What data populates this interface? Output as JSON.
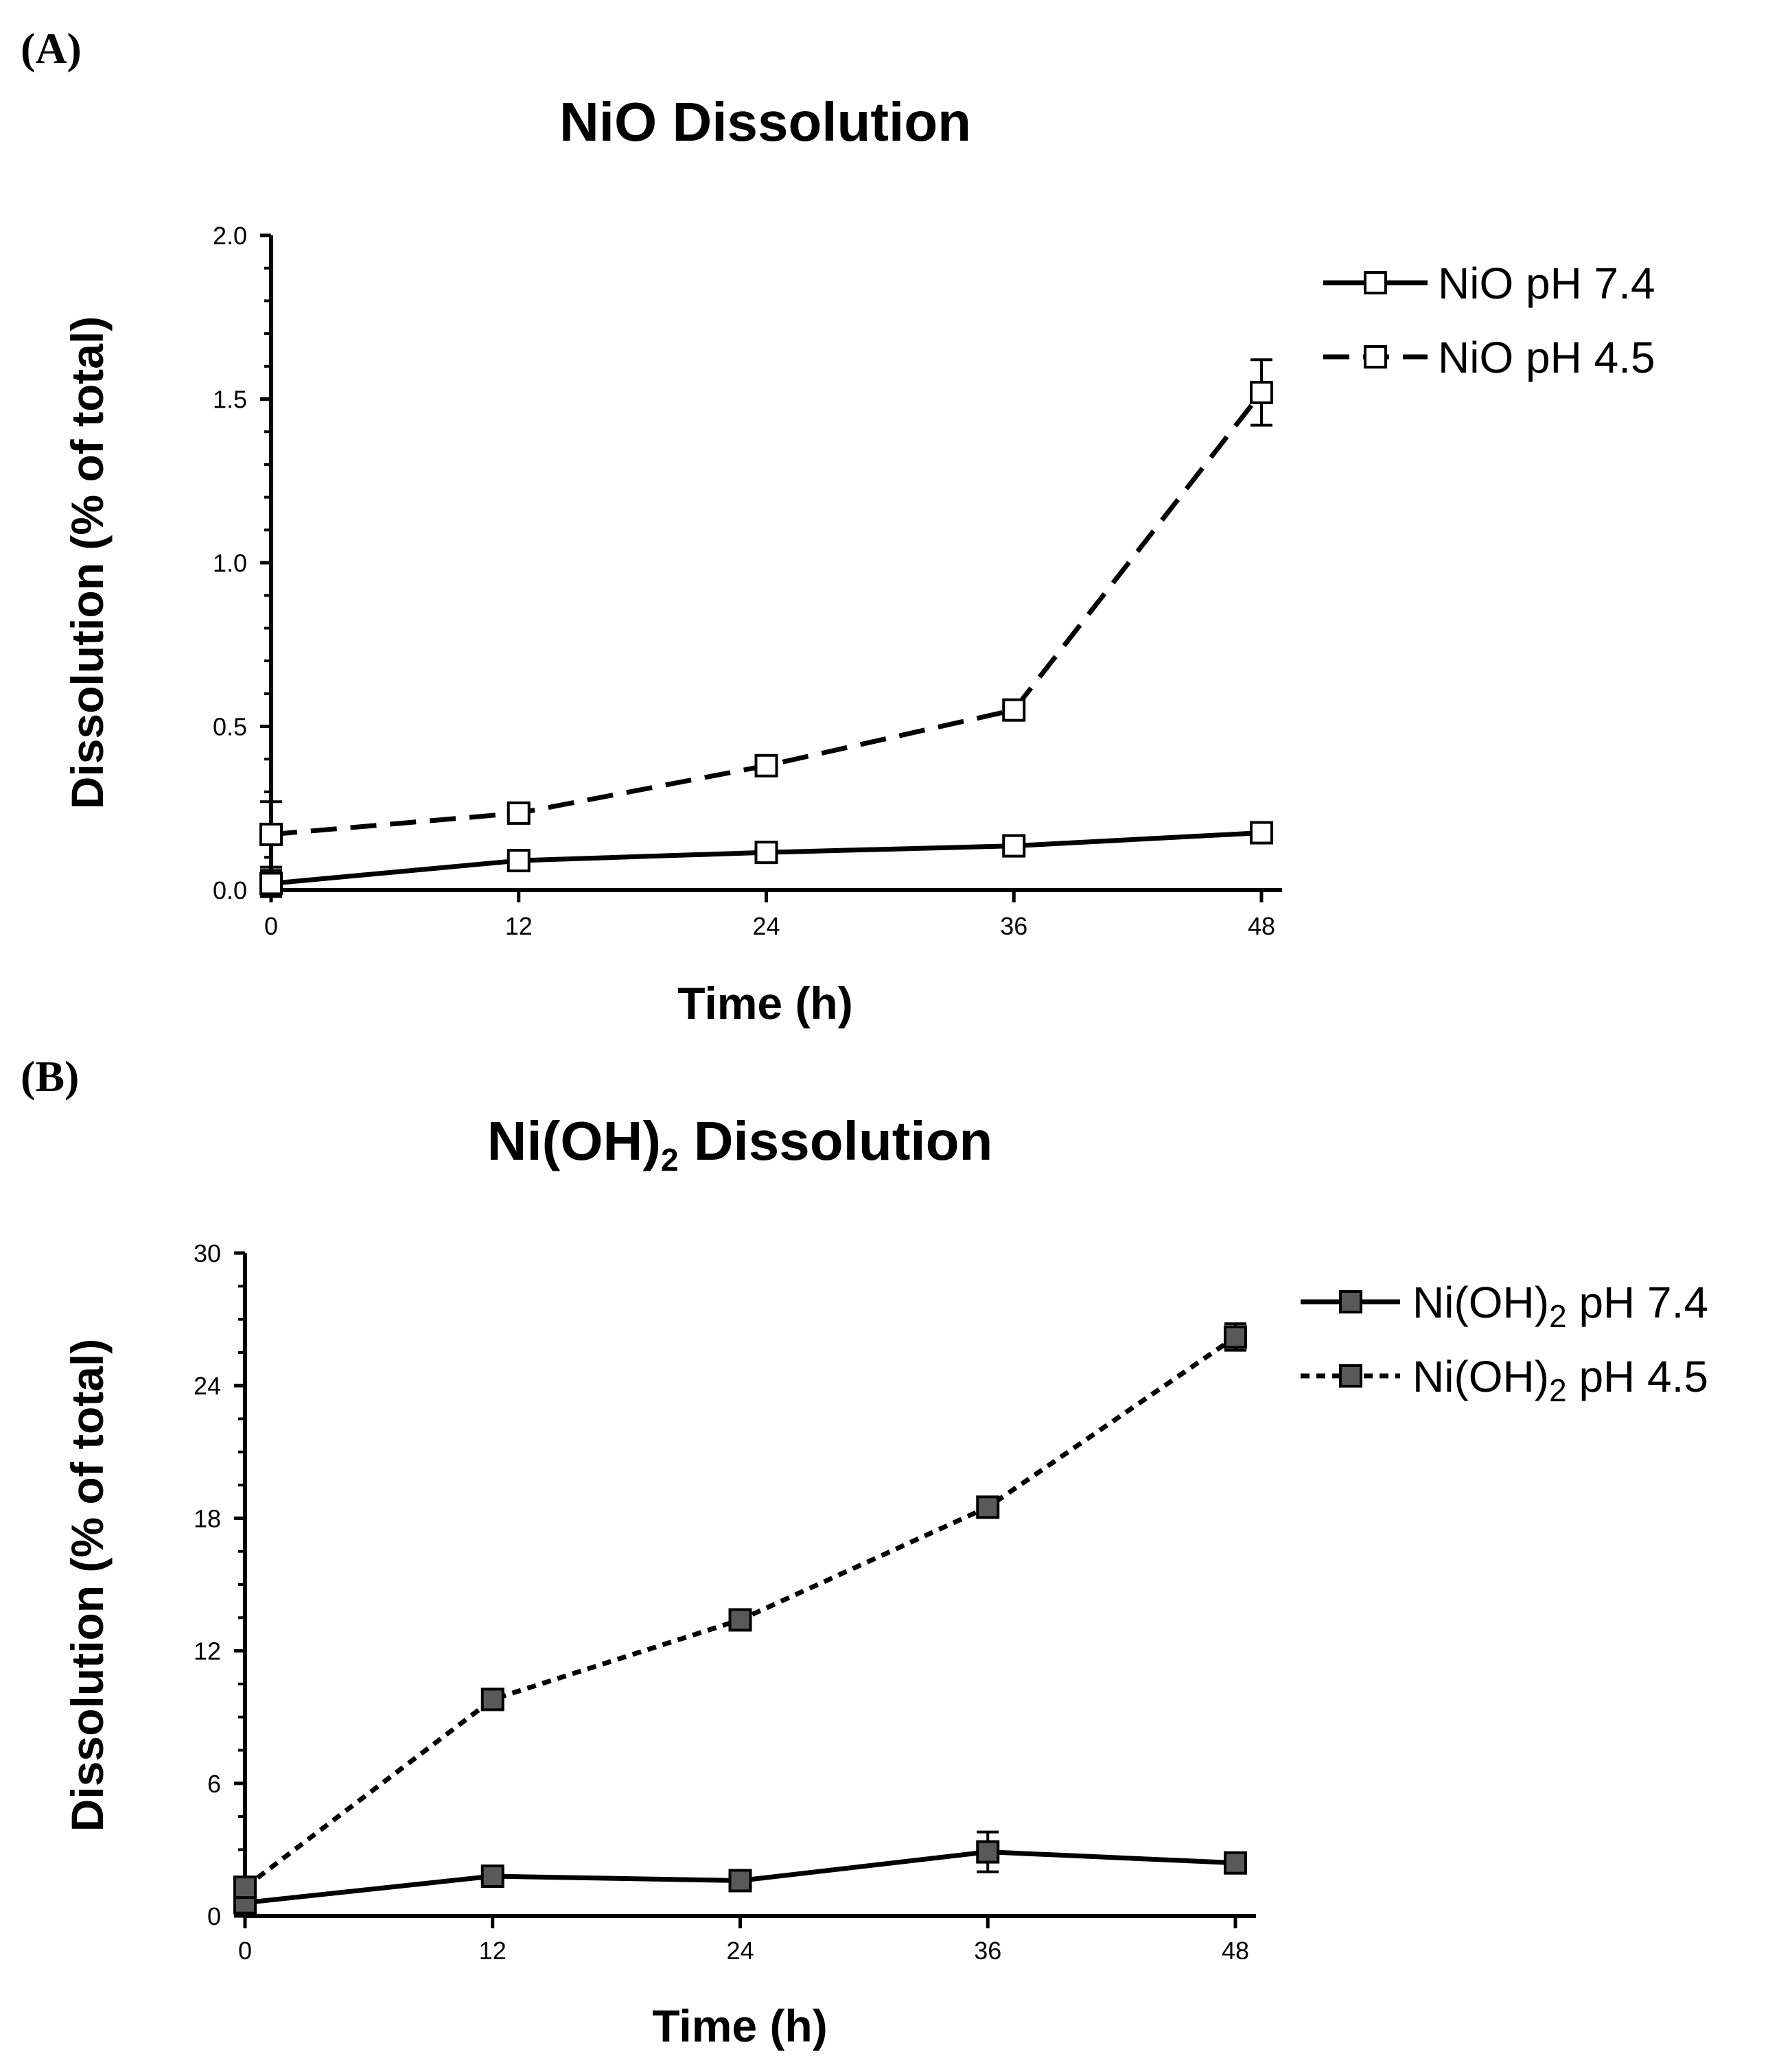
{
  "chart_data": [
    {
      "type": "line",
      "panel_label": "(A)",
      "title": "NiO Dissolution",
      "title_sub": "",
      "title_rest": "",
      "xlabel": "Time (h)",
      "ylabel": "Dissolution (% of total)",
      "xlim": [
        0,
        48
      ],
      "ylim": [
        0,
        2.0
      ],
      "x_ticks": [
        0,
        12,
        24,
        36,
        48
      ],
      "x_tick_labels": [
        "0",
        "12",
        "24",
        "36",
        "48"
      ],
      "y_ticks": [
        0,
        0.5,
        1.0,
        1.5,
        2.0
      ],
      "y_tick_labels": [
        "0.0",
        "0.5",
        "1.0",
        "1.5",
        "2.0"
      ],
      "y_minor_step": 0.1,
      "legend_position": "top-right",
      "series": [
        {
          "name": "NiO pH 7.4",
          "legend_main": "NiO pH 7.4",
          "legend_sub": "",
          "legend_rest": "",
          "line_style": "solid",
          "marker_fill": "#ffffff",
          "x": [
            0,
            12,
            24,
            36,
            48
          ],
          "values": [
            0.02,
            0.09,
            0.115,
            0.135,
            0.175
          ],
          "errors": [
            0.04,
            0.005,
            0.005,
            0.005,
            0.005
          ]
        },
        {
          "name": "NiO pH 4.5",
          "legend_main": "NiO pH 4.5",
          "legend_sub": "",
          "legend_rest": "",
          "line_style": "dashed",
          "marker_fill": "#ffffff",
          "x": [
            0,
            12,
            24,
            36,
            48
          ],
          "values": [
            0.17,
            0.235,
            0.38,
            0.55,
            1.52
          ],
          "errors": [
            0.1,
            0.005,
            0.005,
            0.005,
            0.1
          ]
        }
      ]
    },
    {
      "type": "line",
      "panel_label": "(B)",
      "title": "Ni(OH)",
      "title_sub": "2",
      "title_rest": " Dissolution",
      "xlabel": "Time (h)",
      "ylabel": "Dissolution (% of total)",
      "xlim": [
        0,
        48
      ],
      "ylim": [
        0,
        30
      ],
      "x_ticks": [
        0,
        12,
        24,
        36,
        48
      ],
      "x_tick_labels": [
        "0",
        "12",
        "24",
        "36",
        "48"
      ],
      "y_ticks": [
        0,
        6,
        12,
        18,
        24,
        30
      ],
      "y_tick_labels": [
        "0",
        "6",
        "12",
        "18",
        "24",
        "30"
      ],
      "y_minor_step": 1.5,
      "legend_position": "top-right",
      "series": [
        {
          "name": "Ni(OH)2 pH 7.4",
          "legend_main": "Ni(OH)",
          "legend_sub": "2",
          "legend_rest": " pH 7.4",
          "line_style": "solid",
          "marker_fill": "#595959",
          "x": [
            0,
            12,
            24,
            36,
            48
          ],
          "values": [
            0.6,
            1.8,
            1.6,
            2.9,
            2.4
          ],
          "errors": [
            0.1,
            0.1,
            0.1,
            0.9,
            0.1
          ]
        },
        {
          "name": "Ni(OH)2 pH 4.5",
          "legend_main": "Ni(OH)",
          "legend_sub": "2",
          "legend_rest": " pH 4.5",
          "line_style": "dotted",
          "marker_fill": "#595959",
          "x": [
            0,
            12,
            24,
            36,
            48
          ],
          "values": [
            1.3,
            9.8,
            13.4,
            18.5,
            26.2
          ],
          "errors": [
            0.1,
            0.1,
            0.1,
            0.1,
            0.6
          ]
        }
      ]
    }
  ]
}
